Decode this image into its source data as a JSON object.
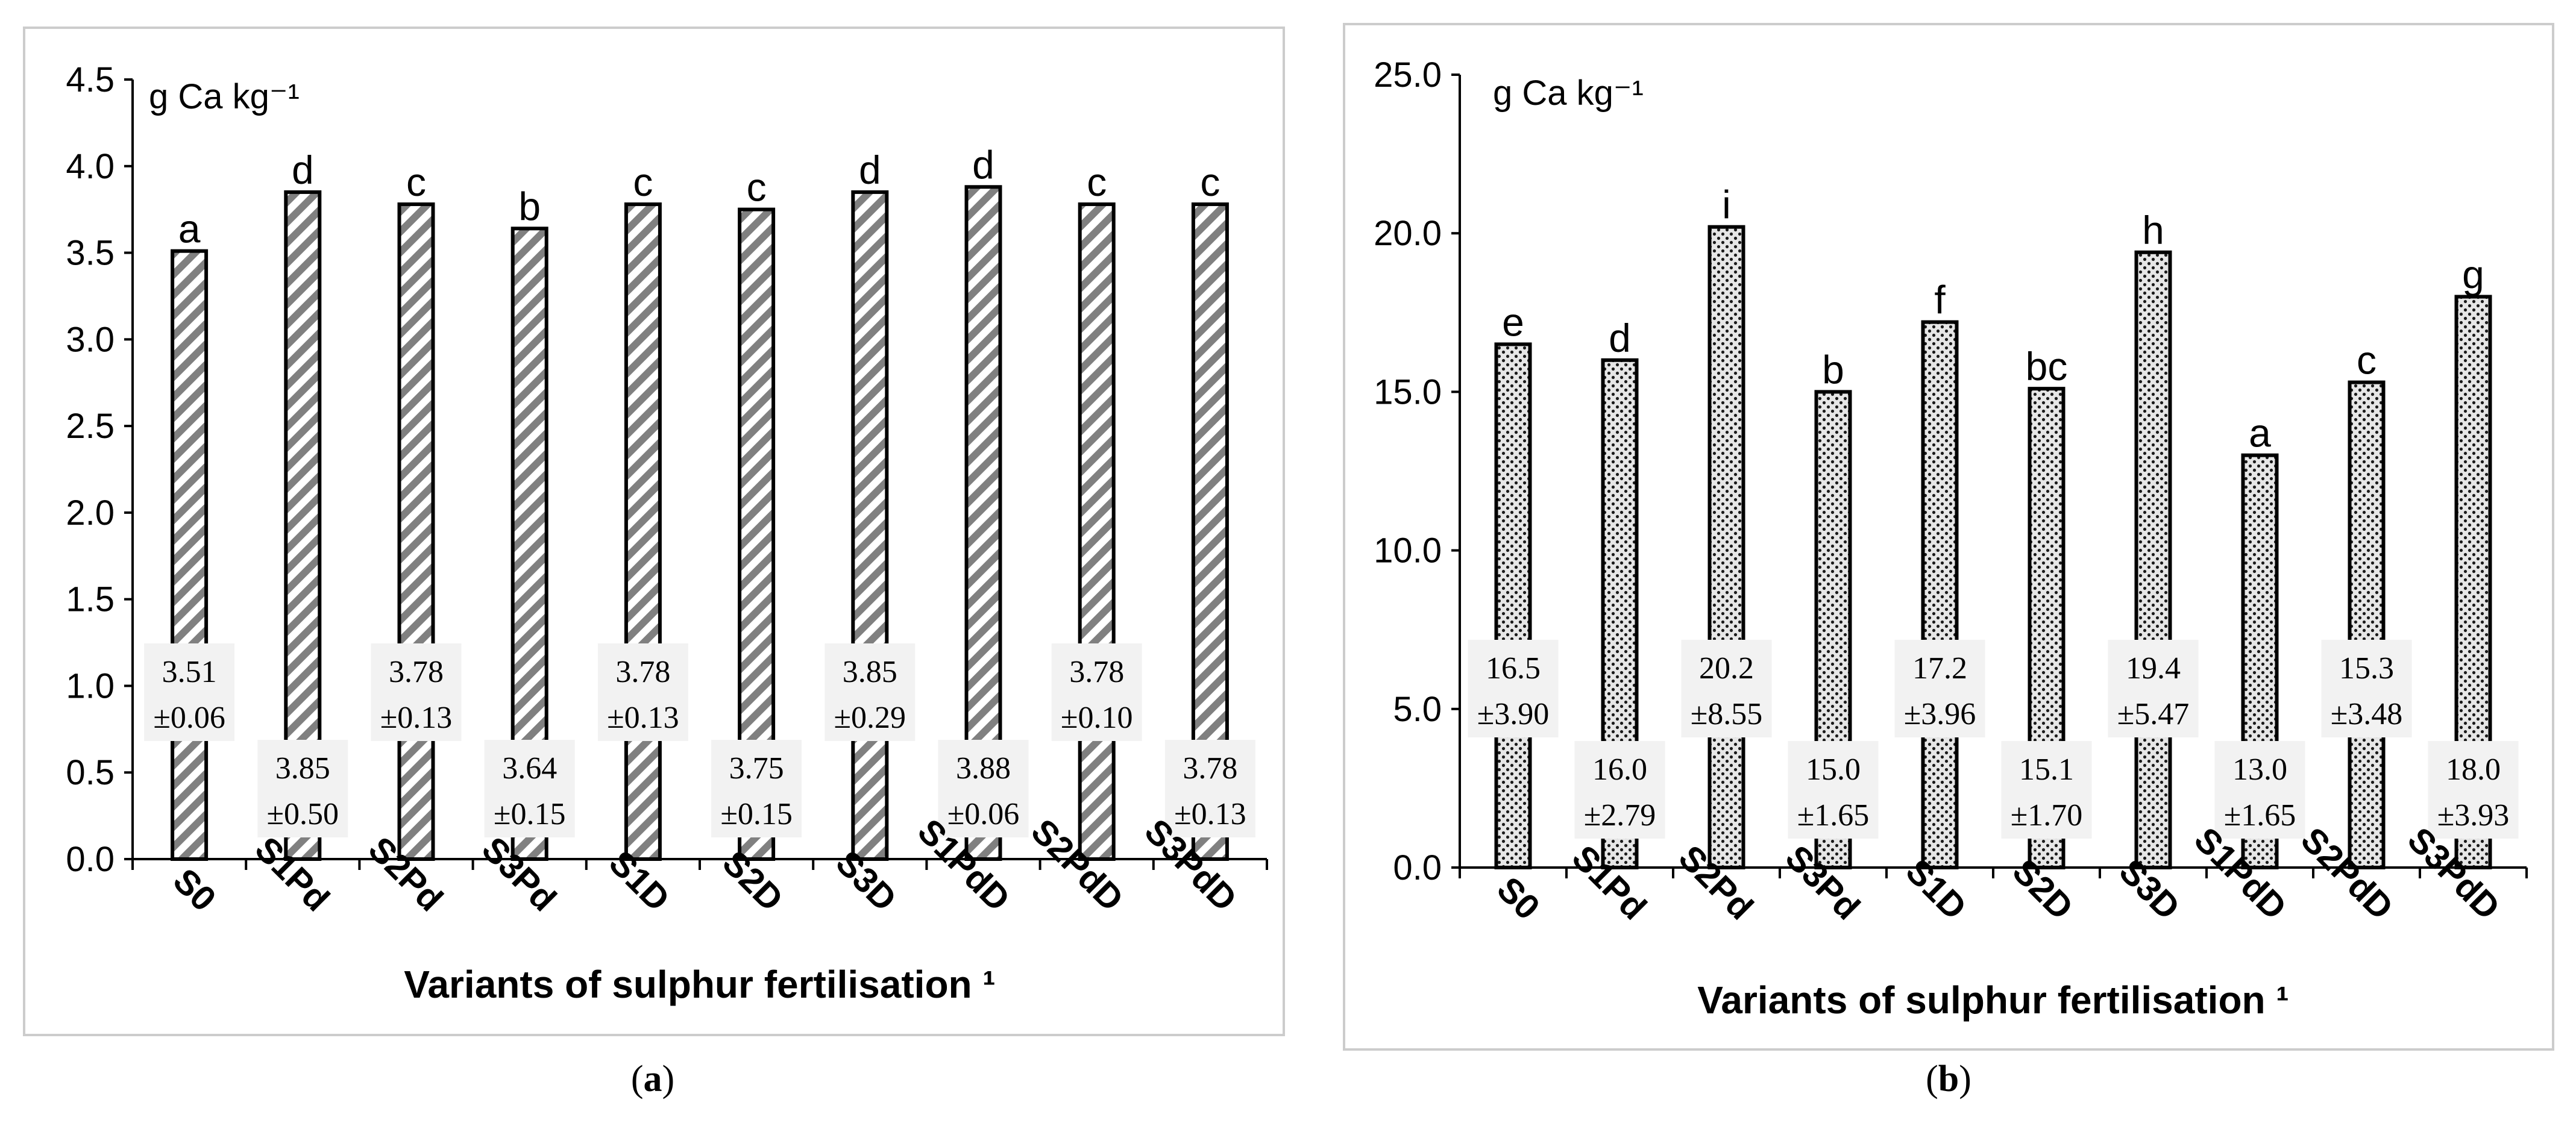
{
  "chart_data": [
    {
      "type": "bar",
      "panel": "a",
      "unit_label": "g Ca kg⁻¹",
      "xlabel": "Variants of sulphur fertilisation ¹",
      "ylabel": "",
      "ylim": [
        0,
        4.5
      ],
      "yticks": [
        "0.0",
        "0.5",
        "1.0",
        "1.5",
        "2.0",
        "2.5",
        "3.0",
        "3.5",
        "4.0",
        "4.5"
      ],
      "categories": [
        "S0",
        "S1Pd",
        "S2Pd",
        "S3Pd",
        "S1D",
        "S2D",
        "S3D",
        "S1PdD",
        "S2PdD",
        "S3PdD"
      ],
      "values": [
        3.51,
        3.85,
        3.78,
        3.64,
        3.78,
        3.75,
        3.85,
        3.88,
        3.78,
        3.78
      ],
      "letters": [
        "a",
        "d",
        "c",
        "b",
        "c",
        "c",
        "d",
        "d",
        "c",
        "c"
      ],
      "value_labels": [
        "3.51",
        "3.85",
        "3.78",
        "3.64",
        "3.78",
        "3.75",
        "3.85",
        "3.88",
        "3.78",
        "3.78"
      ],
      "sd_labels": [
        "±0.06",
        "±0.50",
        "±0.13",
        "±0.15",
        "±0.13",
        "±0.15",
        "±0.29",
        "±0.06",
        "±0.10",
        "±0.13"
      ],
      "pattern": "diagonal-stripes",
      "grid": false,
      "legend": "none"
    },
    {
      "type": "bar",
      "panel": "b",
      "unit_label": "g Ca kg⁻¹",
      "xlabel": "Variants of sulphur fertilisation ¹",
      "ylabel": "",
      "ylim": [
        0,
        25
      ],
      "yticks": [
        "0.0",
        "5.0",
        "10.0",
        "15.0",
        "20.0",
        "25.0"
      ],
      "categories": [
        "S0",
        "S1Pd",
        "S2Pd",
        "S3Pd",
        "S1D",
        "S2D",
        "S3D",
        "S1PdD",
        "S2PdD",
        "S3PdD"
      ],
      "values": [
        16.5,
        16.0,
        20.2,
        15.0,
        17.2,
        15.1,
        19.4,
        13.0,
        15.3,
        18.0
      ],
      "letters": [
        "e",
        "d",
        "i",
        "b",
        "f",
        "bc",
        "h",
        "a",
        "c",
        "g"
      ],
      "value_labels": [
        "16.5",
        "16.0",
        "20.2",
        "15.0",
        "17.2",
        "15.1",
        "19.4",
        "13.0",
        "15.3",
        "18.0"
      ],
      "sd_labels": [
        "±3.90",
        "±2.79",
        "±8.55",
        "±1.65",
        "±3.96",
        "±1.70",
        "±5.47",
        "±1.65",
        "±3.48",
        "±3.93"
      ],
      "pattern": "dots",
      "grid": false,
      "legend": "none"
    }
  ],
  "captions": {
    "a": "a",
    "b": "b"
  }
}
